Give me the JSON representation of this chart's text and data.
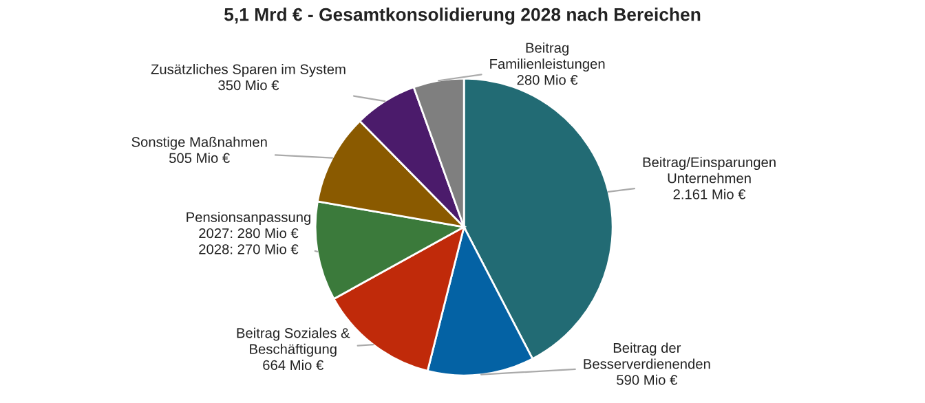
{
  "chart_data": {
    "type": "pie",
    "title": "5,1 Mrd € - Gesamtkonsolidierung 2028 nach Bereichen",
    "categories": [
      "Beitrag/Einsparungen\nUnternehmen",
      "Beitrag der\nBesserverdienenden",
      "Beitrag Soziales &\nBeschäftigung",
      "Pensionsanpassung",
      "Sonstige Maßnahmen",
      "Zusätzliches Sparen im System",
      "Beitrag\nFamilienleistungen"
    ],
    "values": [
      2161,
      590,
      664,
      550,
      505,
      350,
      280
    ],
    "value_labels": [
      "2.161 Mio €",
      "590 Mio €",
      "664 Mio €",
      "2027: 280 Mio €\n2028: 270 Mio €",
      "505 Mio €",
      "350 Mio €",
      "280 Mio €"
    ],
    "colors": [
      "#226b74",
      "#0462a4",
      "#c02a0a",
      "#3b7a3b",
      "#8a5a00",
      "#4b1b6b",
      "#7f7f7f"
    ],
    "legend": false
  }
}
